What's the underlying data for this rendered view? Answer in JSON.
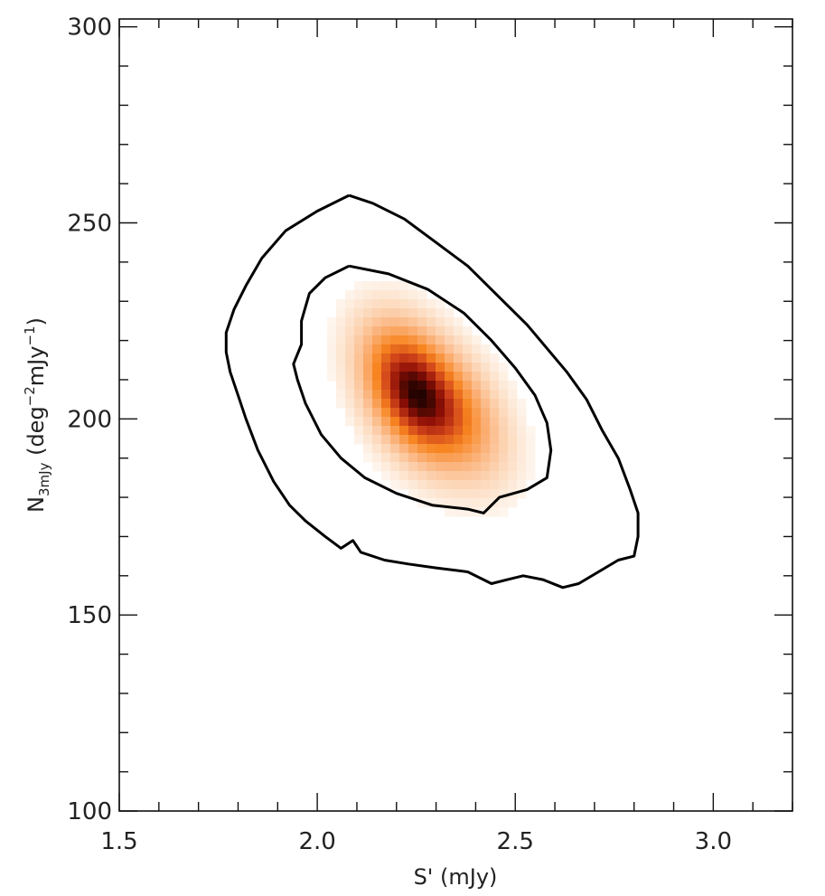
{
  "chart_data": {
    "type": "heatmap",
    "title": "",
    "xlabel": "S' (mJy)",
    "ylabel": {
      "main": "N",
      "subscript": "3mJy",
      "units_open": " (deg",
      "units_exp1": "−2",
      "units_mid": "mJy",
      "units_exp2": "−1",
      "units_close": ")"
    },
    "xlim": [
      1.5,
      3.2
    ],
    "ylim": [
      100,
      302
    ],
    "x_ticks": [
      1.5,
      2.0,
      2.5,
      3.0
    ],
    "x_tick_labels": [
      "1.5",
      "2.0",
      "2.5",
      "3.0"
    ],
    "y_ticks": [
      100,
      150,
      200,
      250,
      300
    ],
    "y_tick_labels": [
      "100",
      "150",
      "200",
      "250",
      "300"
    ],
    "grid": false,
    "colormap": [
      "#ffffff",
      "#fde6d2",
      "#fbb27a",
      "#f7841f",
      "#d0431a",
      "#8e0f06",
      "#1a0200"
    ],
    "density": {
      "peak_x": 2.24,
      "peak_y": 207,
      "sigma_major": 0.19,
      "sigma_minor": 0.11,
      "correlation_axis_deg": -55,
      "secondary_peak_x": 2.37,
      "secondary_peak_y": 200
    },
    "contours": [
      {
        "level": "outer",
        "points": [
          [
            2.08,
            257
          ],
          [
            2.0,
            253
          ],
          [
            1.92,
            248
          ],
          [
            1.86,
            241
          ],
          [
            1.82,
            234
          ],
          [
            1.79,
            228
          ],
          [
            1.77,
            222
          ],
          [
            1.77,
            217
          ],
          [
            1.78,
            212
          ],
          [
            1.8,
            206
          ],
          [
            1.82,
            200
          ],
          [
            1.85,
            192
          ],
          [
            1.89,
            184
          ],
          [
            1.93,
            178
          ],
          [
            1.97,
            174
          ],
          [
            2.02,
            170
          ],
          [
            2.06,
            167
          ],
          [
            2.09,
            169
          ],
          [
            2.11,
            166
          ],
          [
            2.17,
            164
          ],
          [
            2.23,
            163
          ],
          [
            2.3,
            162
          ],
          [
            2.38,
            161
          ],
          [
            2.44,
            158
          ],
          [
            2.48,
            159
          ],
          [
            2.52,
            160
          ],
          [
            2.57,
            159
          ],
          [
            2.62,
            157
          ],
          [
            2.66,
            158
          ],
          [
            2.71,
            161
          ],
          [
            2.76,
            164
          ],
          [
            2.8,
            165
          ],
          [
            2.81,
            170
          ],
          [
            2.81,
            176
          ],
          [
            2.79,
            182
          ],
          [
            2.76,
            190
          ],
          [
            2.72,
            197
          ],
          [
            2.68,
            205
          ],
          [
            2.63,
            212
          ],
          [
            2.58,
            218
          ],
          [
            2.53,
            224
          ],
          [
            2.45,
            232
          ],
          [
            2.38,
            239
          ],
          [
            2.3,
            245
          ],
          [
            2.22,
            251
          ],
          [
            2.14,
            255
          ],
          [
            2.08,
            257
          ]
        ]
      },
      {
        "level": "inner",
        "points": [
          [
            2.08,
            239
          ],
          [
            2.02,
            236
          ],
          [
            1.98,
            232
          ],
          [
            1.96,
            225
          ],
          [
            1.96,
            219
          ],
          [
            1.94,
            214
          ],
          [
            1.95,
            210
          ],
          [
            1.97,
            204
          ],
          [
            2.01,
            196
          ],
          [
            2.06,
            190
          ],
          [
            2.12,
            185
          ],
          [
            2.2,
            181
          ],
          [
            2.29,
            178
          ],
          [
            2.38,
            177
          ],
          [
            2.42,
            176
          ],
          [
            2.46,
            180
          ],
          [
            2.53,
            182
          ],
          [
            2.58,
            185
          ],
          [
            2.59,
            192
          ],
          [
            2.58,
            199
          ],
          [
            2.55,
            206
          ],
          [
            2.5,
            213
          ],
          [
            2.44,
            220
          ],
          [
            2.37,
            227
          ],
          [
            2.28,
            233
          ],
          [
            2.18,
            237
          ],
          [
            2.08,
            239
          ]
        ]
      }
    ]
  }
}
